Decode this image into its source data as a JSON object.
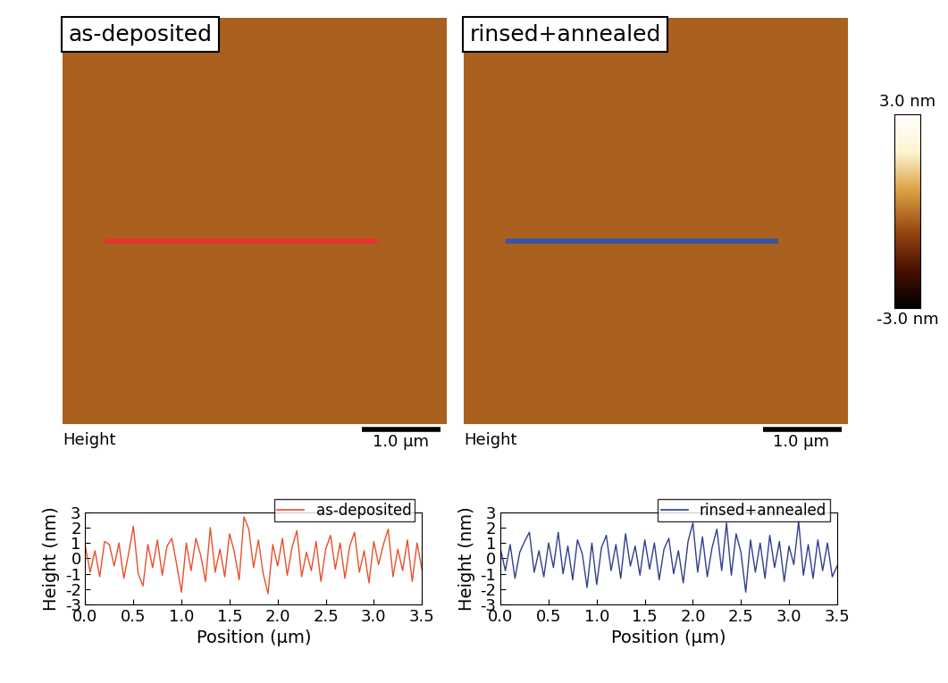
{
  "chart_data": [
    {
      "type": "image",
      "title": "as-deposited",
      "label": "Height",
      "scale_bar": "1.0 µm",
      "color": "#e8312e",
      "tick_labels": false
    },
    {
      "type": "image",
      "title": "rinsed+annealed",
      "label": "Height",
      "scale_bar": "1.0 µm",
      "color": "#3554a5",
      "tick_labels": false,
      "colorbar": {
        "range": [
          -3,
          3
        ],
        "ticks": [
          {
            "value": 3,
            "label": "3.0 nm"
          },
          {
            "value": -3,
            "label": "-3.0 nm"
          }
        ]
      }
    },
    {
      "type": "line",
      "x_label": "Position (μm)",
      "y_label": "Height (nm)",
      "legend": "upper right",
      "xlim": [
        0.0,
        3.5
      ],
      "xticks": [
        0.0,
        0.5,
        1.0,
        1.5,
        2.0,
        2.5,
        3.0,
        3.5
      ],
      "ylim": [
        -3,
        3
      ],
      "yticks": [
        -3,
        -2,
        -1,
        0,
        1,
        2,
        3
      ],
      "x": [
        0.0,
        0.05,
        0.1,
        0.15,
        0.2,
        0.25,
        0.3,
        0.35,
        0.4,
        0.45,
        0.5,
        0.55,
        0.6,
        0.65,
        0.7,
        0.75,
        0.8,
        0.85,
        0.9,
        0.95,
        1.0,
        1.05,
        1.1,
        1.15,
        1.2,
        1.25,
        1.3,
        1.35,
        1.4,
        1.45,
        1.5,
        1.55,
        1.6,
        1.65,
        1.7,
        1.75,
        1.8,
        1.85,
        1.9,
        1.95,
        2.0,
        2.05,
        2.1,
        2.15,
        2.2,
        2.25,
        2.3,
        2.35,
        2.4,
        2.45,
        2.5,
        2.55,
        2.6,
        2.65,
        2.7,
        2.75,
        2.8,
        2.85,
        2.9,
        2.95,
        3.0,
        3.05,
        3.1,
        3.15,
        3.2,
        3.25,
        3.3,
        3.35,
        3.4,
        3.45,
        3.5
      ],
      "series": [
        {
          "name": "as-deposited",
          "color": "#e8502a",
          "values": [
            0.8,
            -0.9,
            0.5,
            -1.2,
            1.1,
            0.9,
            -0.5,
            1.0,
            -1.3,
            0.3,
            2.1,
            -1.0,
            -1.8,
            0.9,
            -0.6,
            1.2,
            -1.1,
            0.8,
            1.3,
            -0.4,
            -2.2,
            1.0,
            -0.8,
            1.3,
            0.2,
            -1.5,
            2.0,
            -0.9,
            0.6,
            -1.2,
            1.6,
            0.4,
            -1.4,
            2.7,
            1.9,
            -0.6,
            1.2,
            -1.0,
            -2.3,
            0.9,
            -0.5,
            1.3,
            -1.1,
            0.7,
            1.8,
            -1.2,
            0.4,
            -0.8,
            1.1,
            -1.5,
            0.6,
            1.5,
            -0.7,
            1.0,
            -1.3,
            0.8,
            1.7,
            -0.9,
            0.5,
            -1.6,
            1.1,
            -0.4,
            0.9,
            1.9,
            -1.2,
            0.6,
            -0.8,
            1.2,
            -1.5,
            1.0,
            -0.7
          ]
        }
      ]
    },
    {
      "type": "line",
      "x_label": "Position (μm)",
      "y_label": "Height (nm)",
      "legend": "upper right",
      "xlim": [
        0.0,
        3.5
      ],
      "xticks": [
        0.0,
        0.5,
        1.0,
        1.5,
        2.0,
        2.5,
        3.0,
        3.5
      ],
      "ylim": [
        -3,
        3
      ],
      "yticks": [
        -3,
        -2,
        -1,
        0,
        1,
        2,
        3
      ],
      "x": [
        0.0,
        0.05,
        0.1,
        0.15,
        0.2,
        0.25,
        0.3,
        0.35,
        0.4,
        0.45,
        0.5,
        0.55,
        0.6,
        0.65,
        0.7,
        0.75,
        0.8,
        0.85,
        0.9,
        0.95,
        1.0,
        1.05,
        1.1,
        1.15,
        1.2,
        1.25,
        1.3,
        1.35,
        1.4,
        1.45,
        1.5,
        1.55,
        1.6,
        1.65,
        1.7,
        1.75,
        1.8,
        1.85,
        1.9,
        1.95,
        2.0,
        2.05,
        2.1,
        2.15,
        2.2,
        2.25,
        2.3,
        2.35,
        2.4,
        2.45,
        2.5,
        2.55,
        2.6,
        2.65,
        2.7,
        2.75,
        2.8,
        2.85,
        2.9,
        2.95,
        3.0,
        3.05,
        3.1,
        3.15,
        3.2,
        3.25,
        3.3,
        3.35,
        3.4,
        3.45,
        3.5
      ],
      "series": [
        {
          "name": "rinsed+annealed",
          "color": "#2e3f8c",
          "values": [
            0.6,
            -0.8,
            0.9,
            -1.3,
            0.4,
            1.1,
            1.7,
            -0.9,
            0.5,
            -1.2,
            1.0,
            -0.6,
            1.7,
            -1.0,
            0.8,
            -1.4,
            1.2,
            0.3,
            -1.9,
            1.0,
            -1.7,
            0.7,
            1.5,
            -0.8,
            0.9,
            -1.3,
            1.6,
            -0.5,
            0.8,
            -1.1,
            1.2,
            -0.7,
            1.0,
            -1.4,
            0.6,
            1.3,
            -1.0,
            0.5,
            -1.6,
            1.1,
            2.3,
            -0.9,
            1.4,
            -1.2,
            0.7,
            1.9,
            -0.8,
            2.3,
            -1.1,
            1.6,
            0.4,
            -2.2,
            1.2,
            -0.9,
            1.0,
            -1.3,
            1.5,
            -0.6,
            1.1,
            -1.5,
            0.8,
            -0.4,
            2.4,
            -1.1,
            0.9,
            -1.3,
            1.2,
            -0.8,
            1.0,
            -1.2,
            -0.5
          ]
        }
      ]
    }
  ]
}
